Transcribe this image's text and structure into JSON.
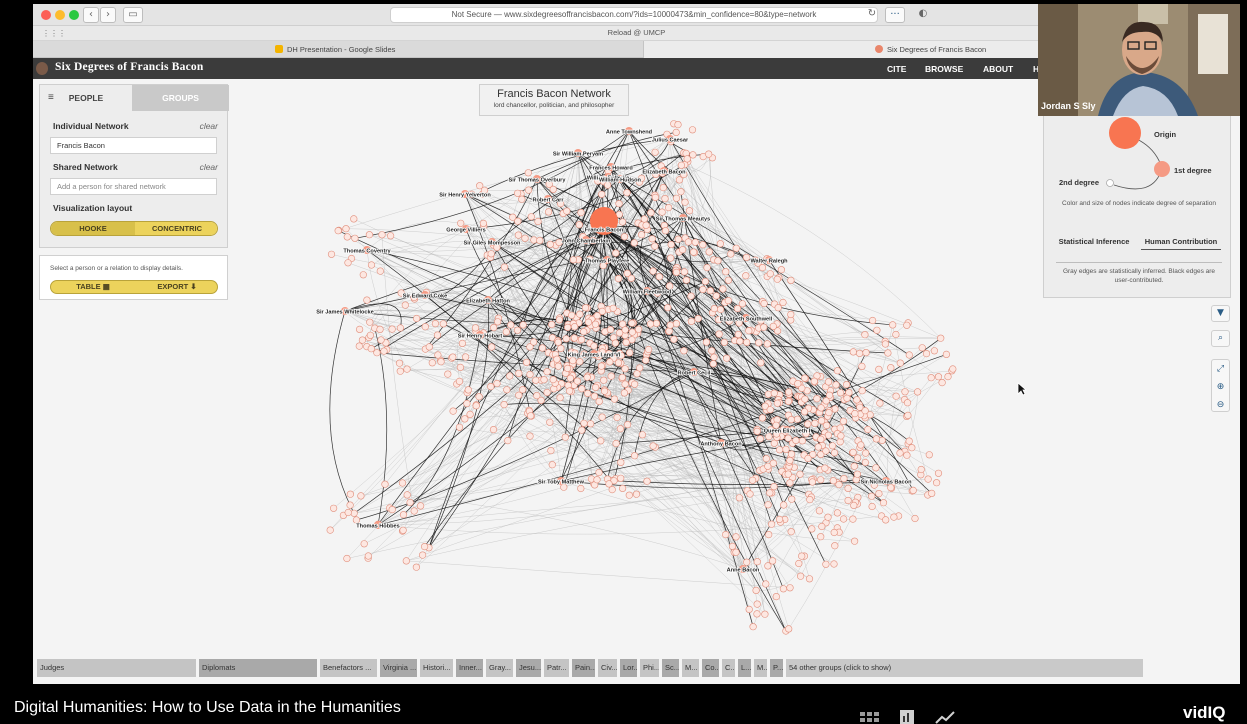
{
  "browser": {
    "url": "Not Secure — www.sixdegreesoffrancisbacon.com/?ids=10000473&min_confidence=80&type=network",
    "favorites_label": "Reload @ UMCP",
    "tabs": [
      "DH Presentation - Google Slides",
      "Six Degrees of Francis Bacon"
    ]
  },
  "site": {
    "brand": "Six Degrees of Francis Bacon",
    "nav": [
      "CITE",
      "BROWSE",
      "ABOUT",
      "H"
    ]
  },
  "left_panel": {
    "tab_people": "PEOPLE",
    "tab_groups": "GROUPS",
    "individual_label": "Individual Network",
    "individual_clear": "clear",
    "individual_value": "Francis Bacon",
    "shared_label": "Shared Network",
    "shared_clear": "clear",
    "shared_placeholder": "Add a person for shared network",
    "layout_label": "Visualization layout",
    "layout_hooke": "HOOKE",
    "layout_concentric": "CONCENTRIC"
  },
  "detail_panel": {
    "message": "Select a person or a relation to display details.",
    "table_btn": "TABLE ▦",
    "export_btn": "EXPORT ⬇"
  },
  "network_title": {
    "title": "Francis Bacon Network",
    "subtitle": "lord chancellor, politician, and philosopher"
  },
  "legend": {
    "origin": "Origin",
    "first_degree": "1st degree",
    "second_degree": "2nd degree",
    "size_note": "Color and size of nodes indicate degree of separation",
    "tab_statistical": "Statistical Inference",
    "tab_human": "Human Contribution",
    "edges_note": "Gray edges are statistically inferred. Black edges are user-contributed."
  },
  "colors": {
    "node": "#f6b8a9",
    "node_stroke": "#e08d7a",
    "origin": "#f87551",
    "first_degree": "#f59a84",
    "gray_edge": "#b5b5b5",
    "black_edge": "#111111",
    "accent_yellow": "#ecd35c",
    "header_bg": "#3b3b3b"
  },
  "network": {
    "origin": "Francis Bacon",
    "hub_labels": [
      "Anne Townshend",
      "Julius Caesar",
      "Sir William Peryam",
      "Frances Howard",
      "William Fullerke",
      "Elizabeth Bacon",
      "William Hudson",
      "Sir Thomas Overbury",
      "Sir Henry Yelverton",
      "Robert Carr",
      "Sir Thomas Meautys",
      "George Villiers",
      "Francis Bacon",
      "Sir Giles Mompesson",
      "John Chamberlain",
      "Thomas Coventry",
      "Walter Ralegh",
      "Thomas Playfere",
      "Sir Edward Coke",
      "William Fleetwood",
      "Elizabeth Hatton",
      "Sir James Whitelocke",
      "Elizabeth Southwell",
      "Sir Henry Hobart",
      "King James I and VI",
      "Robert Cecil",
      "Queen Elizabeth I",
      "Anthony Bacon",
      "Sir Toby Matthew",
      "Sir Nicholas Bacon",
      "Thomas Hobbes",
      "Anne Bacon"
    ]
  },
  "groups": [
    "Judges",
    "Diplomats",
    "Benefactors ...",
    "Virginia ...",
    "Histori...",
    "Inner...",
    "Gray...",
    "Jesu...",
    "Patr...",
    "Pain...",
    "Civ...",
    "Lor...",
    "Phi...",
    "Sc...",
    "M...",
    "Co...",
    "C...",
    "L...",
    "M...",
    "P...",
    "54 other groups (click to show)"
  ],
  "webcam": {
    "name": "Jordan S Sly"
  },
  "video": {
    "title": "Digital Humanities: How to Use Data in the Humanities",
    "brand": "vidIQ"
  }
}
